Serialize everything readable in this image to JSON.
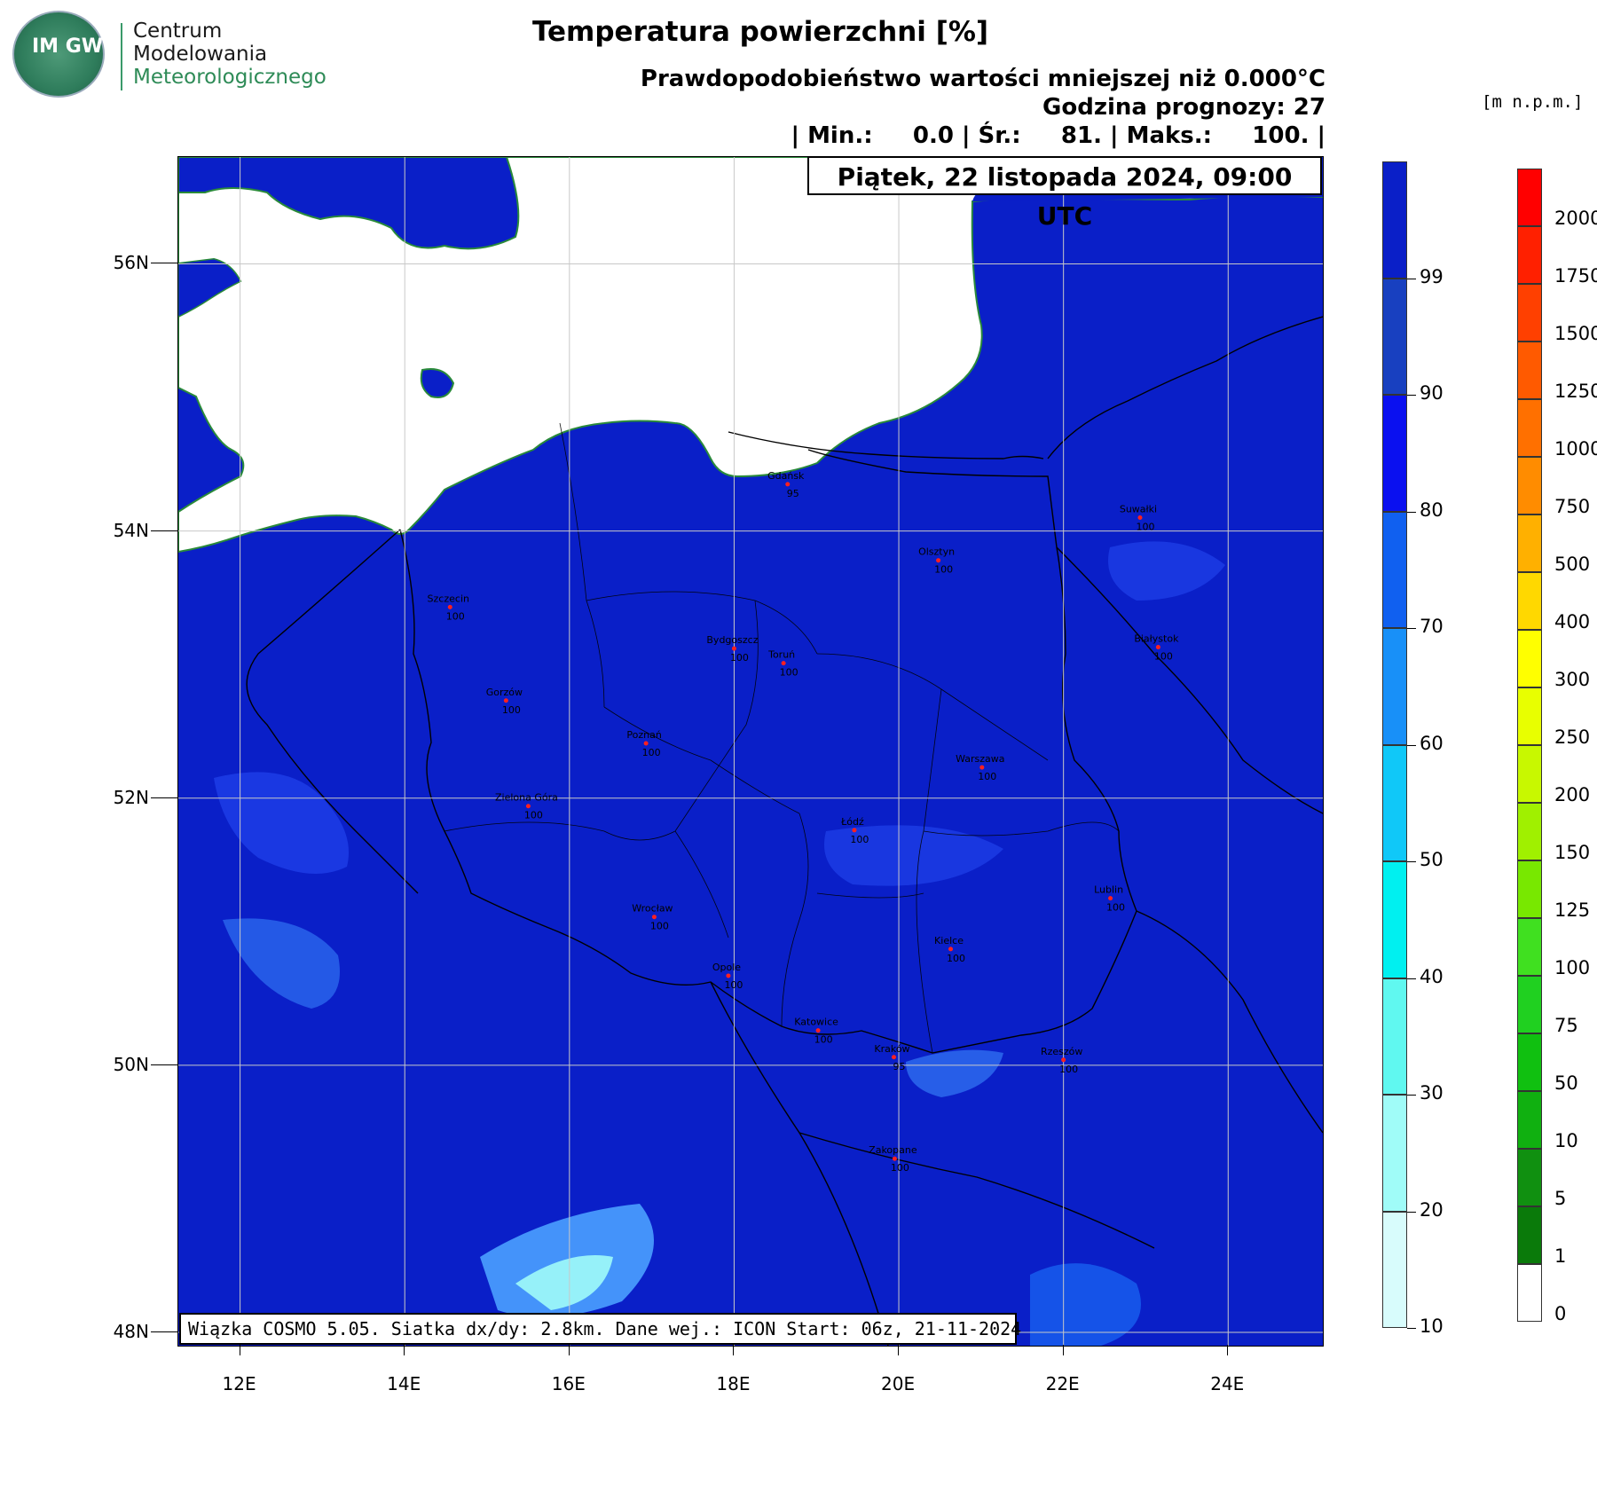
{
  "logo": {
    "emblem_text": "IM GW",
    "line1": "Centrum",
    "line2": "Modelowania",
    "line3": "Meteorologicznego"
  },
  "title": "Temperatura powierzchni [%]",
  "subtitle1": "Prawdopodobieństwo wartości mniejszej niż 0.000°C",
  "subtitle2": "Godzina prognozy: 27",
  "subtitle3": "| Min.:     0.0 | Śr.:     81. | Maks.:     100. |",
  "date": "Piątek, 22 listopada 2024, 09:00 UTC",
  "info": "Wiązka COSMO 5.05. Siatka dx/dy: 2.8km. Dane wej.: ICON Start: 06z, 21-11-2024",
  "unit_label": "[m n.p.m.]",
  "colors": {
    "ocean": "#ffffff",
    "land_main": "#0a1fc8",
    "land_alt": "#1d3de6",
    "light": "#4aa0ff"
  },
  "lat_labels": [
    "56N",
    "54N",
    "52N",
    "50N",
    "48N"
  ],
  "lon_labels": [
    "12E",
    "14E",
    "16E",
    "18E",
    "20E",
    "22E",
    "24E"
  ],
  "cities": [
    {
      "name": "Gdańsk",
      "value": "95",
      "lon": 18.65,
      "lat": 54.35
    },
    {
      "name": "Suwałki",
      "value": "100",
      "lon": 22.93,
      "lat": 54.1
    },
    {
      "name": "Olsztyn",
      "value": "100",
      "lon": 20.48,
      "lat": 53.78
    },
    {
      "name": "Szczecin",
      "value": "100",
      "lon": 14.55,
      "lat": 53.43
    },
    {
      "name": "Bydgoszcz",
      "value": "100",
      "lon": 18.0,
      "lat": 53.12
    },
    {
      "name": "Toruń",
      "value": "100",
      "lon": 18.6,
      "lat": 53.01
    },
    {
      "name": "Białystok",
      "value": "100",
      "lon": 23.15,
      "lat": 53.13
    },
    {
      "name": "Gorzów",
      "value": "100",
      "lon": 15.23,
      "lat": 52.73
    },
    {
      "name": "Poznań",
      "value": "100",
      "lon": 16.93,
      "lat": 52.41
    },
    {
      "name": "Warszawa",
      "value": "100",
      "lon": 21.01,
      "lat": 52.23
    },
    {
      "name": "Zielona Góra",
      "value": "100",
      "lon": 15.5,
      "lat": 51.94
    },
    {
      "name": "Łódź",
      "value": "100",
      "lon": 19.46,
      "lat": 51.76
    },
    {
      "name": "Wrocław",
      "value": "100",
      "lon": 17.03,
      "lat": 51.11
    },
    {
      "name": "Lublin",
      "value": "100",
      "lon": 22.57,
      "lat": 51.25
    },
    {
      "name": "Kielce",
      "value": "100",
      "lon": 20.63,
      "lat": 50.87
    },
    {
      "name": "Opole",
      "value": "100",
      "lon": 17.93,
      "lat": 50.67
    },
    {
      "name": "Katowice",
      "value": "100",
      "lon": 19.02,
      "lat": 50.26
    },
    {
      "name": "Kraków",
      "value": "95",
      "lon": 19.94,
      "lat": 50.06
    },
    {
      "name": "Rzeszów",
      "value": "100",
      "lon": 22.0,
      "lat": 50.04
    },
    {
      "name": "Zakopane",
      "value": "100",
      "lon": 19.95,
      "lat": 49.3
    }
  ],
  "prob_colorbar": {
    "labels": [
      "99",
      "90",
      "80",
      "70",
      "60",
      "50",
      "40",
      "30",
      "20",
      "10"
    ],
    "colors": [
      "#0a1fc8",
      "#1840c0",
      "#0a10f0",
      "#1060f0",
      "#1890f8",
      "#10c8f8",
      "#00f0f0",
      "#60f8f0",
      "#a0fcf8",
      "#d8fcfc"
    ]
  },
  "elev_colorbar": {
    "labels": [
      "2000",
      "1750",
      "1500",
      "1250",
      "1000",
      "750",
      "500",
      "400",
      "300",
      "250",
      "200",
      "150",
      "125",
      "100",
      "75",
      "50",
      "10",
      "5",
      "1",
      "0"
    ],
    "colors": [
      "#ff0000",
      "#ff2000",
      "#ff4000",
      "#ff5a00",
      "#ff7000",
      "#ff8c00",
      "#ffb000",
      "#ffd800",
      "#ffff00",
      "#e8ff00",
      "#c8f800",
      "#a0f000",
      "#78e800",
      "#40e020",
      "#20d020",
      "#10c010",
      "#10b010",
      "#109010",
      "#0a7a0a",
      "#ffffff"
    ]
  }
}
